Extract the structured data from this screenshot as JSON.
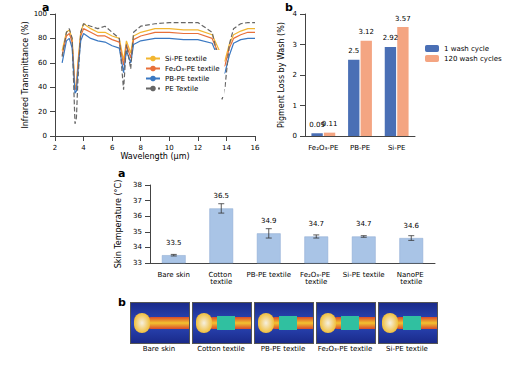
{
  "chart_data": [
    {
      "type": "line",
      "title": "a",
      "x_label": "Wavelength (μm)",
      "y_label": "Infrared Transmittance (%)",
      "xlim": [
        2,
        16
      ],
      "xticks": [
        2,
        4,
        6,
        8,
        10,
        12,
        14,
        16
      ],
      "ylim": [
        0,
        100
      ],
      "yticks": [
        0,
        20,
        40,
        60,
        80,
        100
      ],
      "legend": "right",
      "x": [
        2.5,
        2.8,
        3.0,
        3.2,
        3.4,
        3.5,
        3.6,
        3.8,
        4.0,
        4.5,
        5.0,
        5.5,
        6.0,
        6.5,
        6.8,
        7.0,
        7.3,
        7.5,
        8,
        9,
        10,
        11,
        12,
        13,
        13.5,
        13.7,
        13.9,
        14.2,
        14.5,
        15,
        15.5,
        16
      ],
      "series": [
        {
          "name": "Si-PE textile",
          "color": "#f2b630",
          "line_style": "solid",
          "values": [
            70,
            85,
            87,
            80,
            40,
            42,
            60,
            85,
            92,
            88,
            85,
            85,
            82,
            80,
            62,
            78,
            68,
            82,
            85,
            88,
            88,
            87,
            87,
            83,
            70,
            60,
            62,
            75,
            83,
            86,
            88,
            88
          ]
        },
        {
          "name": "Fe₂O₃-PE textile",
          "color": "#e8703a",
          "line_style": "solid",
          "values": [
            66,
            82,
            84,
            77,
            38,
            40,
            57,
            82,
            88,
            85,
            82,
            82,
            79,
            77,
            58,
            75,
            64,
            79,
            82,
            85,
            85,
            84,
            84,
            80,
            66,
            56,
            58,
            72,
            80,
            83,
            85,
            85
          ]
        },
        {
          "name": "PB-PE textile",
          "color": "#3a78c2",
          "line_style": "solid",
          "values": [
            60,
            78,
            80,
            72,
            35,
            37,
            52,
            78,
            84,
            80,
            78,
            77,
            74,
            72,
            52,
            70,
            60,
            75,
            78,
            80,
            80,
            79,
            79,
            76,
            62,
            50,
            52,
            66,
            76,
            79,
            80,
            80
          ]
        },
        {
          "name": "PE Textile",
          "color": "#666666",
          "line_style": "dashed",
          "values": [
            65,
            85,
            88,
            80,
            10,
            15,
            45,
            85,
            92,
            90,
            88,
            90,
            85,
            80,
            38,
            75,
            55,
            85,
            90,
            92,
            93,
            93,
            93,
            85,
            60,
            30,
            40,
            75,
            88,
            92,
            93,
            93
          ]
        }
      ]
    },
    {
      "type": "bar",
      "title": "b",
      "y_label": "Pigment Loss by Wash (%)",
      "categories": [
        "Fe₂O₃-PE",
        "PB-PE",
        "Si-PE"
      ],
      "ylim": [
        0,
        4
      ],
      "yticks": [
        0,
        1,
        2,
        3,
        4
      ],
      "legend": "right",
      "data_labels": true,
      "series": [
        {
          "name": "1 wash cycle",
          "color": "#4a6fb5",
          "values": [
            0.09,
            2.5,
            2.92
          ]
        },
        {
          "name": "120 wash cycles",
          "color": "#f4a582",
          "values": [
            0.11,
            3.12,
            3.57
          ]
        }
      ]
    },
    {
      "type": "bar",
      "title": "a",
      "y_label": "Skin Temperature (°C)",
      "categories": [
        "Bare skin",
        "Cotton textile",
        "PB-PE textile",
        "Fe₂O₃-PE textile",
        "Si-PE textile",
        "NanoPE textile"
      ],
      "values": [
        33.5,
        36.5,
        34.9,
        34.7,
        34.7,
        34.6
      ],
      "errors": [
        0.05,
        0.3,
        0.3,
        0.1,
        0.05,
        0.15
      ],
      "color": "#a9c4e6",
      "ylim": [
        33,
        38
      ],
      "yticks": [
        33,
        34,
        35,
        36,
        37,
        38
      ],
      "data_labels": true
    }
  ],
  "thermal_images": {
    "title": "b",
    "labels": [
      "Bare skin",
      "Cotton textile",
      "PB-PE textile",
      "Fe₂O₃-PE textile",
      "Si-PE textile"
    ]
  }
}
